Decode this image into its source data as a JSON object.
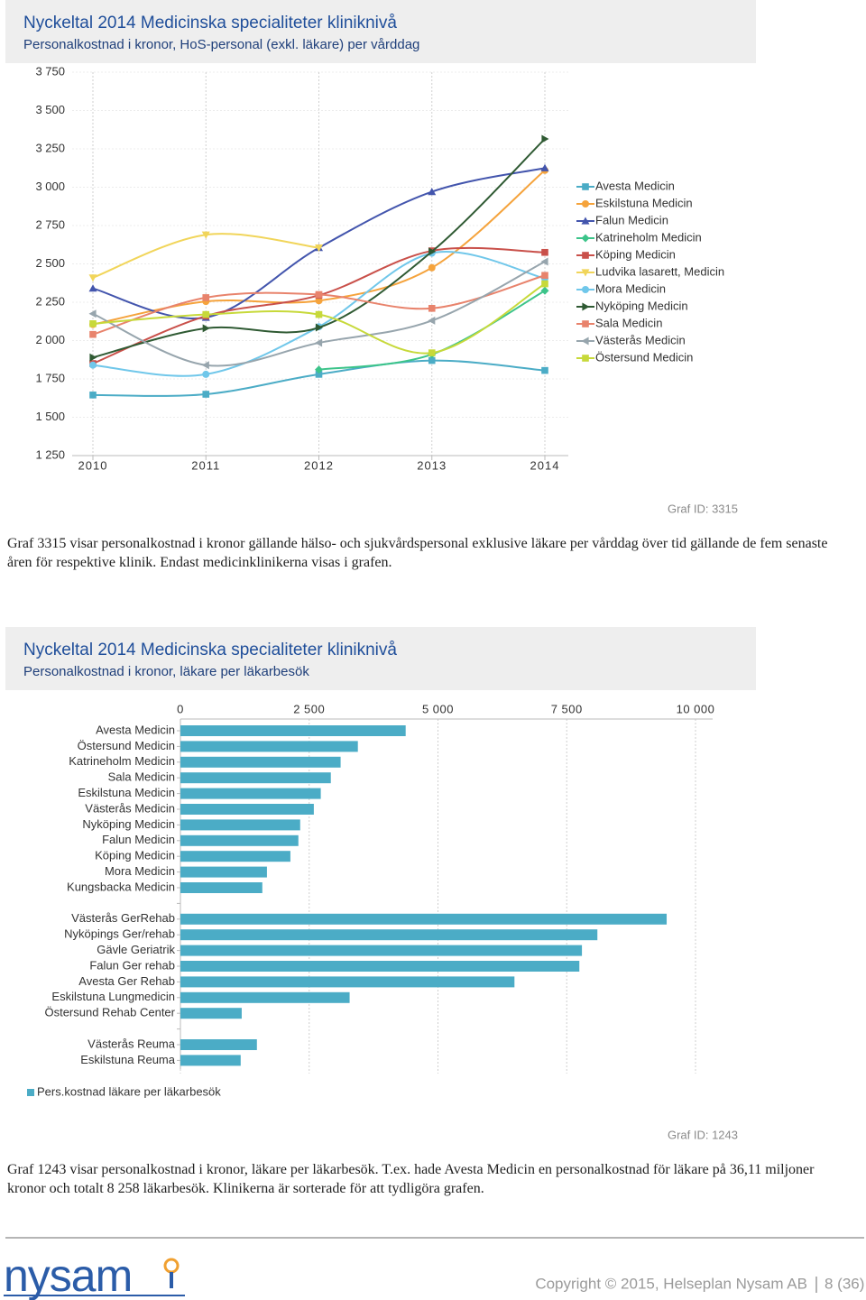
{
  "chart_data": [
    {
      "type": "line",
      "title": "Nyckeltal 2014 Medicinska specialiteter kliniknivå",
      "subtitle": "Personalkostnad i kronor, HoS-personal (exkl. läkare) per vårddag",
      "categories": [
        "2010",
        "2011",
        "2012",
        "2013",
        "2014"
      ],
      "ylim": [
        1250,
        3750
      ],
      "yticks": [
        {
          "value": 1250,
          "label": "1 250"
        },
        {
          "value": 1500,
          "label": "1 500"
        },
        {
          "value": 1750,
          "label": "1 750"
        },
        {
          "value": 2000,
          "label": "2 000"
        },
        {
          "value": 2250,
          "label": "2 250"
        },
        {
          "value": 2500,
          "label": "2 500"
        },
        {
          "value": 2750,
          "label": "2 750"
        },
        {
          "value": 3000,
          "label": "3 000"
        },
        {
          "value": 3250,
          "label": "3 250"
        },
        {
          "value": 3500,
          "label": "3 500"
        },
        {
          "value": 3750,
          "label": "3 750"
        }
      ],
      "grid": true,
      "series": [
        {
          "name": "Avesta Medicin",
          "color": "#4bacc6",
          "marker": "square",
          "values": [
            1645,
            1650,
            1780,
            1870,
            1805
          ]
        },
        {
          "name": "Eskilstuna Medicin",
          "color": "#f5a33c",
          "marker": "circle",
          "values": [
            2105,
            2255,
            2260,
            2475,
            3110
          ]
        },
        {
          "name": "Falun Medicin",
          "color": "#4355ad",
          "marker": "triangle-up",
          "values": [
            2340,
            2150,
            2605,
            2970,
            3125
          ]
        },
        {
          "name": "Katrineholm Medicin",
          "color": "#3cc48a",
          "marker": "diamond",
          "values": [
            null,
            null,
            1810,
            1910,
            2325
          ]
        },
        {
          "name": "Köping Medicin",
          "color": "#c9504a",
          "marker": "square",
          "values": [
            1850,
            2160,
            2295,
            2585,
            2575
          ]
        },
        {
          "name": "Ludvika lasarett, Medicin",
          "color": "#f1d55a",
          "marker": "triangle-down",
          "values": [
            2410,
            2690,
            2605,
            null,
            null
          ]
        },
        {
          "name": "Mora Medicin",
          "color": "#70c7ea",
          "marker": "circle",
          "values": [
            1840,
            1780,
            2090,
            2570,
            2405
          ]
        },
        {
          "name": "Nyköping Medicin",
          "color": "#2f5a33",
          "marker": "triangle-right",
          "values": [
            1890,
            2080,
            2085,
            2580,
            3315
          ]
        },
        {
          "name": "Sala Medicin",
          "color": "#e8836c",
          "marker": "square",
          "values": [
            2040,
            2280,
            2300,
            2210,
            2425
          ]
        },
        {
          "name": "Västerås Medicin",
          "color": "#97a5ad",
          "marker": "triangle-left",
          "values": [
            2175,
            1840,
            1985,
            2130,
            2515
          ]
        },
        {
          "name": "Östersund Medicin",
          "color": "#c7d93a",
          "marker": "square",
          "values": [
            2110,
            2170,
            2170,
            1920,
            2370
          ]
        }
      ]
    },
    {
      "type": "bar",
      "orientation": "horizontal",
      "title": "Nyckeltal 2014 Medicinska specialiteter kliniknivå",
      "subtitle": "Personalkostnad i kronor, läkare per läkarbesök",
      "categories": [
        "Avesta Medicin",
        "Östersund Medicin",
        "Katrineholm Medicin",
        "Sala Medicin",
        "Eskilstuna Medicin",
        "Västerås Medicin",
        "Nyköping Medicin",
        "Falun Medicin",
        "Köping Medicin",
        "Mora Medicin",
        "Kungsbacka Medicin",
        null,
        "Västerås GerRehab",
        "Nyköpings Ger/rehab",
        "Gävle Geriatrik",
        "Falun Ger rehab",
        "Avesta Ger Rehab",
        "Eskilstuna Lungmedicin",
        "Östersund Rehab Center",
        null,
        "Västerås Reuma",
        "Eskilstuna Reuma"
      ],
      "xlim": [
        0,
        10000
      ],
      "xticks": [
        0,
        {
          "value": 2500,
          "label": "2 500"
        },
        {
          "value": 5000,
          "label": "5 000"
        },
        {
          "value": 7500,
          "label": "7 500"
        },
        {
          "value": 10000,
          "label": "10 000"
        }
      ],
      "grid": true,
      "series": [
        {
          "name": "Pers.kostnad läkare per läkarbesök",
          "color": "#4bacc6",
          "values": [
            4373,
            3445,
            3110,
            2920,
            2725,
            2590,
            2325,
            2290,
            2135,
            1680,
            1590,
            null,
            9440,
            8095,
            7795,
            7745,
            6485,
            3285,
            1190,
            null,
            1485,
            1170
          ]
        }
      ]
    }
  ],
  "graph_ids": [
    "Graf ID: 3315",
    "Graf ID: 1243"
  ],
  "captions": [
    "Graf 3315 visar personalkostnad i kronor gällande hälso- och sjukvårdspersonal exklusive läkare per vårddag över tid gällande de fem senaste åren för respektive klinik. Endast medicinklinikerna visas i grafen.",
    "Graf 1243 visar personalkostnad i kronor, läkare per läkarbesök. T.ex. hade Avesta Medicin en personalkostnad för läkare på 36,11 miljoner kronor och totalt 8 258 läkarbesök. Klinikerna är sorterade för att tydligöra grafen."
  ],
  "footer": {
    "logo": "nysam",
    "copyright": "Copyright © 2015, Helseplan Nysam AB",
    "page": "8 (36)"
  }
}
